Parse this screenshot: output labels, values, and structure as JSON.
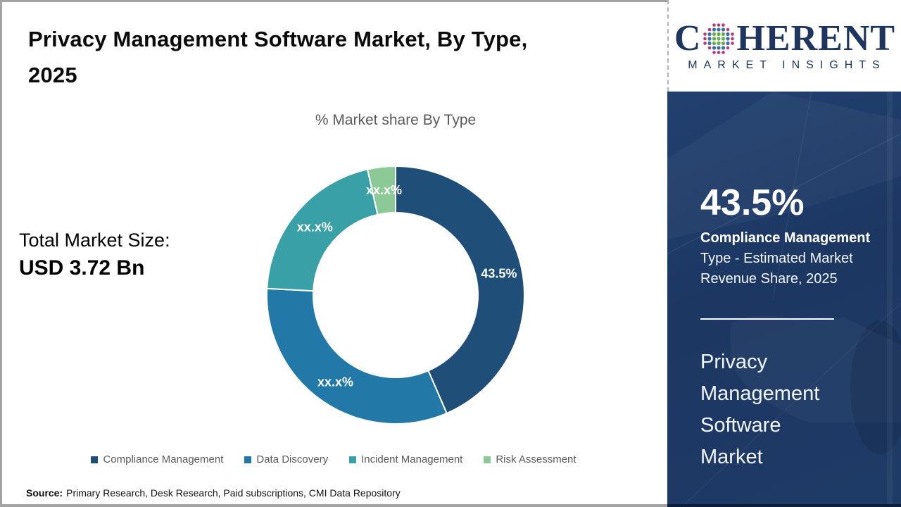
{
  "page": {
    "border_color": "#a3a3a3",
    "background": "#ffffff"
  },
  "header": {
    "title": "Privacy Management Software Market, By Type, 2025",
    "title_lines": [
      "Privacy Management Software Market, By Type,",
      "2025"
    ]
  },
  "logo": {
    "text_before_globe": "C",
    "text_after_globe": "HERENT",
    "subtext": "MARKET INSIGHTS",
    "text_color": "#1e3560",
    "globe_dot_colors": {
      "inner": "#67ad4f",
      "mid": "#3c6db2",
      "outer": "#b73b72"
    }
  },
  "totals": {
    "label": "Total Market Size:",
    "value": "USD 3.72 Bn"
  },
  "chart_data": {
    "type": "pie",
    "subtype": "donut",
    "title": "% Market share By Type",
    "start_angle_deg": 0,
    "direction": "clockwise",
    "legend_position": "bottom",
    "inner_radius_ratio": 0.64,
    "series": [
      {
        "name": "Compliance Management",
        "value": 43.5,
        "display_label": "43.5%",
        "color": "#1F4E79"
      },
      {
        "name": "Data Discovery",
        "value": 32.3,
        "display_label": "xx.x%",
        "color": "#2279A7"
      },
      {
        "name": "Incident Management",
        "value": 20.7,
        "display_label": "xx.x%",
        "color": "#38A0A6"
      },
      {
        "name": "Risk Assessment",
        "value": 3.5,
        "display_label": "xx.x%",
        "color": "#8BCA96"
      }
    ],
    "note": "Only the Compliance Management share (43.5%) is shown; other slice labels are masked as xx.x% — numeric values estimated from arc angles"
  },
  "panel": {
    "background": "#1e3a66",
    "stat_value": "43.5%",
    "stat_title": "Compliance Management",
    "stat_lines": [
      "Type - Estimated Market",
      "Revenue Share, 2025"
    ],
    "market_name_lines": [
      "Privacy",
      "Management",
      "Software",
      "Market"
    ]
  },
  "footer": {
    "source_label": "Source:",
    "source_text": "Primary Research, Desk Research, Paid subscriptions, CMI Data Repository"
  }
}
